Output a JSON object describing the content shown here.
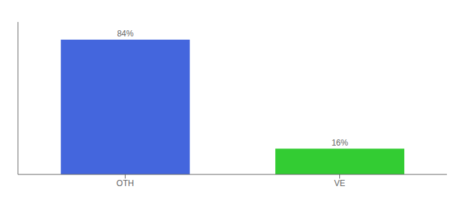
{
  "chart_data": {
    "type": "bar",
    "categories": [
      "OTH",
      "VE"
    ],
    "values": [
      84,
      16
    ],
    "value_labels": [
      "84%",
      "16%"
    ],
    "colors": [
      "#4466dd",
      "#33cc33"
    ],
    "ylim": [
      0,
      95
    ],
    "data_labels": true,
    "tick_labels": "x",
    "grid": false
  }
}
